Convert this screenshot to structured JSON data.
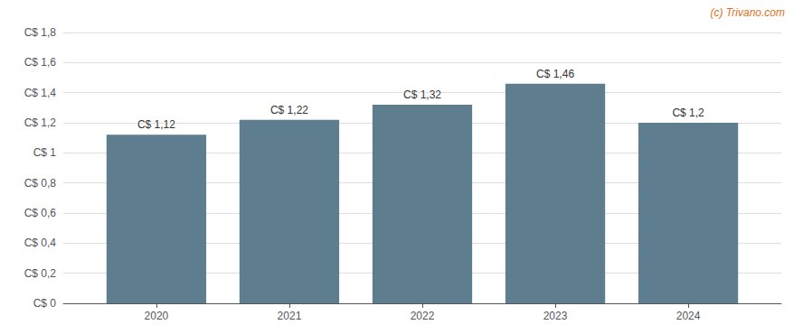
{
  "chart_data": {
    "type": "bar",
    "x": [
      2020,
      2021,
      2022,
      2023,
      2024
    ],
    "values": [
      1.12,
      1.22,
      1.32,
      1.46,
      1.2
    ],
    "value_labels": [
      "C$ 1,12",
      "C$ 1,22",
      "C$ 1,32",
      "C$ 1,46",
      "C$ 1,2"
    ],
    "data_labels": true,
    "color": "#5e7d8f",
    "xlim": [
      2019.3,
      2024.7
    ],
    "xticks": [
      2020,
      2021,
      2022,
      2023,
      2024
    ],
    "ylim": [
      0,
      1.8
    ],
    "yticks": [
      {
        "value": 0,
        "label": "C$ 0"
      },
      {
        "value": 0.2,
        "label": "C$ 0,2"
      },
      {
        "value": 0.4,
        "label": "C$ 0,4"
      },
      {
        "value": 0.6,
        "label": "C$ 0,6"
      },
      {
        "value": 0.8,
        "label": "C$ 0,8"
      },
      {
        "value": 1.0,
        "label": "C$ 1"
      },
      {
        "value": 1.2,
        "label": "C$ 1,2"
      },
      {
        "value": 1.4,
        "label": "C$ 1,4"
      },
      {
        "value": 1.6,
        "label": "C$ 1,6"
      },
      {
        "value": 1.8,
        "label": "C$ 1,8"
      }
    ],
    "grid": true,
    "annotations": [
      {
        "text": "(c) Trivano.com",
        "color": "#e07020"
      }
    ]
  }
}
